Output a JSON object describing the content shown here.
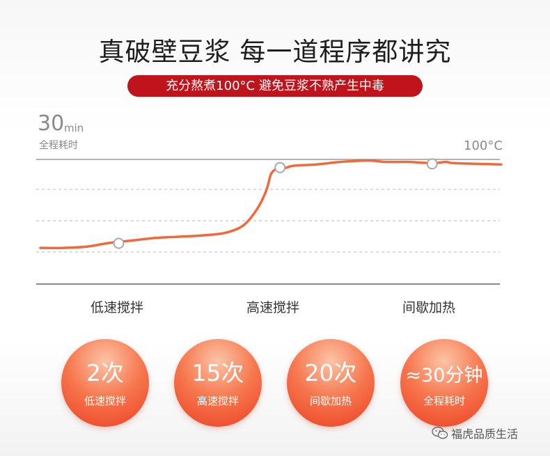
{
  "header": {
    "title": "真破壁豆浆 每一道程序都讲究",
    "subtitle": "充分熬煮100°C 避免豆浆不熟产生中毒"
  },
  "chart_data": {
    "type": "line",
    "ylabel_value": "30",
    "ylabel_unit": "min",
    "ylabel_caption": "全程耗时",
    "line_label": "100°C",
    "x": [
      0,
      0.05,
      0.1,
      0.15,
      0.2,
      0.25,
      0.3,
      0.35,
      0.4,
      0.44,
      0.47,
      0.49,
      0.5,
      0.51,
      0.52,
      0.53,
      0.55,
      0.6,
      0.65,
      0.7,
      0.72,
      0.75,
      0.8,
      0.85,
      0.88,
      0.9,
      1.0
    ],
    "y": [
      0.29,
      0.29,
      0.3,
      0.33,
      0.35,
      0.37,
      0.38,
      0.39,
      0.41,
      0.47,
      0.6,
      0.75,
      0.88,
      0.92,
      0.94,
      0.93,
      0.95,
      0.96,
      0.98,
      0.99,
      0.99,
      0.98,
      0.98,
      0.97,
      0.98,
      0.97,
      0.96
    ],
    "markers": [
      0.17,
      0.52,
      0.85
    ],
    "categories": [
      "低速搅拌",
      "高速搅拌",
      "间歇加热"
    ]
  },
  "stats": [
    {
      "value": "2次",
      "label": "低速搅拌"
    },
    {
      "value": "15次",
      "label": "高速搅拌"
    },
    {
      "value": "20次",
      "label": "间歇加热"
    },
    {
      "value": "≈30分钟",
      "label": "全程耗时"
    }
  ],
  "watermark": {
    "text": "福虎品质生活",
    "icon": "wechat-icon"
  },
  "colors": {
    "line": "#f0693a",
    "banner": "#c0141c",
    "circle": "#f26a45"
  }
}
